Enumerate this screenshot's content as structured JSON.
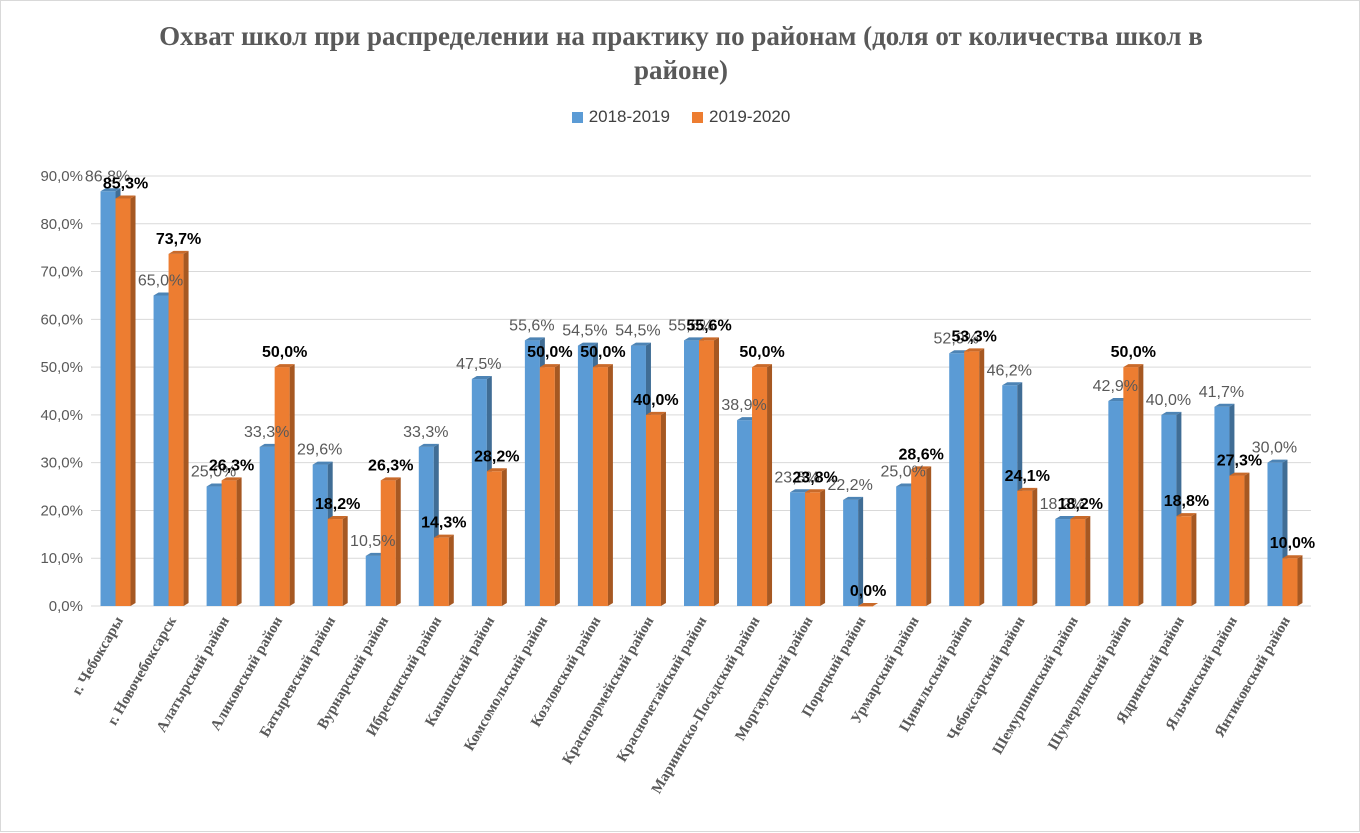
{
  "chart_data": {
    "type": "bar",
    "title": "Охват школ при распределении на практику по районам (доля от количества школ в районе)",
    "xlabel": "",
    "ylabel": "",
    "ylim": [
      0,
      90
    ],
    "yticks": [
      "0,0%",
      "10,0%",
      "20,0%",
      "30,0%",
      "40,0%",
      "50,0%",
      "60,0%",
      "70,0%",
      "80,0%",
      "90,0%"
    ],
    "grid": true,
    "legend_position": "top",
    "categories": [
      "г. Чебоксары",
      "г. Новочебоксарск",
      "Алатырский район",
      "Аликовский район",
      "Батыревский район",
      "Вурнарский район",
      "Ибресинский район",
      "Канашский район",
      "Комсомольский район",
      "Козловский район",
      "Красноармейский район",
      "Красночетайский район",
      "Мариинско-Посадский район",
      "Моргаушский район",
      "Порецкий район",
      "Урмарский район",
      "Цивильский район",
      "Чебоксарский район",
      "Шемуршинский район",
      "Шумерлинский район",
      "Ядринский район",
      "Яльчикский район",
      "Янтиковский район"
    ],
    "series": [
      {
        "name": "2018-2019",
        "color": "#5B9BD5",
        "values": [
          86.8,
          65.0,
          25.0,
          33.3,
          29.6,
          10.5,
          33.3,
          47.5,
          55.6,
          54.5,
          54.5,
          55.6,
          38.9,
          23.8,
          22.2,
          25.0,
          52.9,
          46.2,
          18.2,
          42.9,
          40.0,
          41.7,
          30.0
        ],
        "labels": [
          "86,8%",
          "65,0%",
          "25,0%",
          "33,3%",
          "29,6%",
          "10,5%",
          "33,3%",
          "47,5%",
          "55,6%",
          "54,5%",
          "54,5%",
          "55,6%",
          "38,9%",
          "23,8%",
          "22,2%",
          "25,0%",
          "52,9%",
          "46,2%",
          "18,2%",
          "42,9%",
          "40,0%",
          "41,7%",
          "30,0%"
        ]
      },
      {
        "name": "2019-2020",
        "color": "#ED7D31",
        "values": [
          85.3,
          73.7,
          26.3,
          50.0,
          18.2,
          26.3,
          14.3,
          28.2,
          50.0,
          50.0,
          40.0,
          55.6,
          50.0,
          23.8,
          0.0,
          28.6,
          53.3,
          24.1,
          18.2,
          50.0,
          18.8,
          27.3,
          10.0
        ],
        "labels": [
          "85,3%",
          "73,7%",
          "26,3%",
          "50,0%",
          "18,2%",
          "26,3%",
          "14,3%",
          "28,2%",
          "50,0%",
          "50,0%",
          "40,0%",
          "55,6%",
          "50,0%",
          "23,8%",
          "0,0%",
          "28,6%",
          "53,3%",
          "24,1%",
          "18,2%",
          "50,0%",
          "18,8%",
          "27,3%",
          "10,0%"
        ]
      }
    ]
  }
}
